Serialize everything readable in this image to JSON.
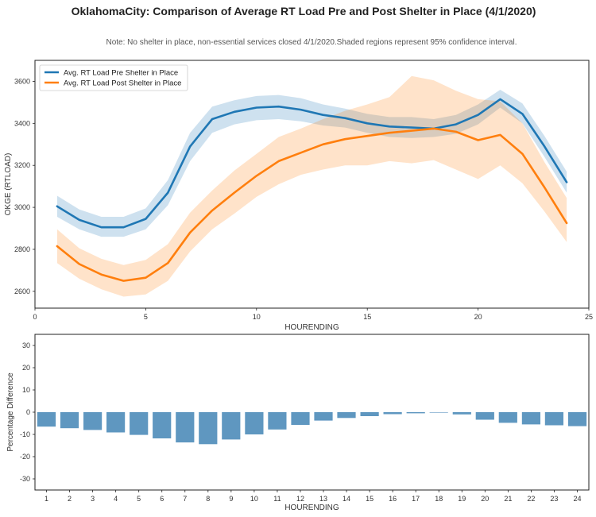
{
  "figure": {
    "title": "OklahomaCity: Comparison of Average RT Load Pre and Post Shelter in Place (4/1/2020)",
    "note": "Note: No shelter in place, non-essential services closed 4/1/2020.Shaded regions represent 95% confidence interval."
  },
  "chart_data": [
    {
      "type": "line",
      "xlabel": "HOURENDING",
      "ylabel": "OKGE (RTLOAD)",
      "xlim": [
        0,
        25
      ],
      "ylim": [
        2520,
        3700
      ],
      "xticks": [
        0,
        5,
        10,
        15,
        20,
        25
      ],
      "yticks": [
        2600,
        2800,
        3000,
        3200,
        3400,
        3600
      ],
      "legend_position": "top-left",
      "x": [
        1,
        2,
        3,
        4,
        5,
        6,
        7,
        8,
        9,
        10,
        11,
        12,
        13,
        14,
        15,
        16,
        17,
        18,
        19,
        20,
        21,
        22,
        23,
        24
      ],
      "series": [
        {
          "name": "Avg. RT Load Pre Shelter in Place",
          "color": "#1f77b4",
          "values": [
            3005,
            2940,
            2905,
            2905,
            2945,
            3070,
            3290,
            3420,
            3455,
            3475,
            3480,
            3465,
            3440,
            3425,
            3400,
            3385,
            3380,
            3375,
            3395,
            3440,
            3515,
            3445,
            3290,
            3120
          ],
          "ci_lower": [
            2955,
            2895,
            2860,
            2860,
            2895,
            3010,
            3220,
            3355,
            3395,
            3415,
            3420,
            3410,
            3390,
            3380,
            3355,
            3335,
            3330,
            3335,
            3350,
            3395,
            3475,
            3400,
            3240,
            3070
          ],
          "ci_upper": [
            3055,
            2990,
            2955,
            2955,
            2995,
            3130,
            3355,
            3480,
            3510,
            3530,
            3535,
            3520,
            3490,
            3470,
            3445,
            3430,
            3430,
            3420,
            3440,
            3490,
            3560,
            3495,
            3340,
            3170
          ]
        },
        {
          "name": "Avg. RT Load Post Shelter in Place",
          "color": "#ff7f0e",
          "values": [
            2815,
            2730,
            2680,
            2650,
            2665,
            2735,
            2880,
            2985,
            3070,
            3150,
            3220,
            3260,
            3300,
            3325,
            3340,
            3355,
            3365,
            3375,
            3360,
            3320,
            3345,
            3255,
            3095,
            2925
          ],
          "ci_lower": [
            2735,
            2660,
            2610,
            2575,
            2585,
            2650,
            2790,
            2895,
            2970,
            3050,
            3110,
            3155,
            3180,
            3200,
            3200,
            3220,
            3210,
            3225,
            3180,
            3135,
            3200,
            3115,
            2980,
            2835
          ],
          "ci_upper": [
            2895,
            2805,
            2755,
            2725,
            2750,
            2825,
            2975,
            3080,
            3175,
            3255,
            3335,
            3375,
            3420,
            3460,
            3490,
            3525,
            3625,
            3605,
            3555,
            3515,
            3505,
            3400,
            3215,
            3045
          ]
        }
      ]
    },
    {
      "type": "bar",
      "xlabel": "HOURENDING",
      "ylabel": "Percentage Difference",
      "ylim": [
        -35,
        35
      ],
      "yticks": [
        -30,
        -20,
        -10,
        0,
        10,
        20,
        30
      ],
      "categories": [
        "1",
        "2",
        "3",
        "4",
        "5",
        "6",
        "7",
        "8",
        "9",
        "10",
        "11",
        "12",
        "13",
        "14",
        "15",
        "16",
        "17",
        "18",
        "19",
        "20",
        "21",
        "22",
        "23",
        "24"
      ],
      "color": "#5f97c0",
      "values": [
        -6.5,
        -7.2,
        -8.0,
        -9.1,
        -10.2,
        -11.8,
        -13.6,
        -14.4,
        -12.3,
        -10.0,
        -7.8,
        -5.7,
        -3.8,
        -2.6,
        -1.8,
        -0.9,
        -0.5,
        0.0,
        -1.0,
        -3.4,
        -4.8,
        -5.5,
        -5.9,
        -6.3
      ]
    }
  ]
}
